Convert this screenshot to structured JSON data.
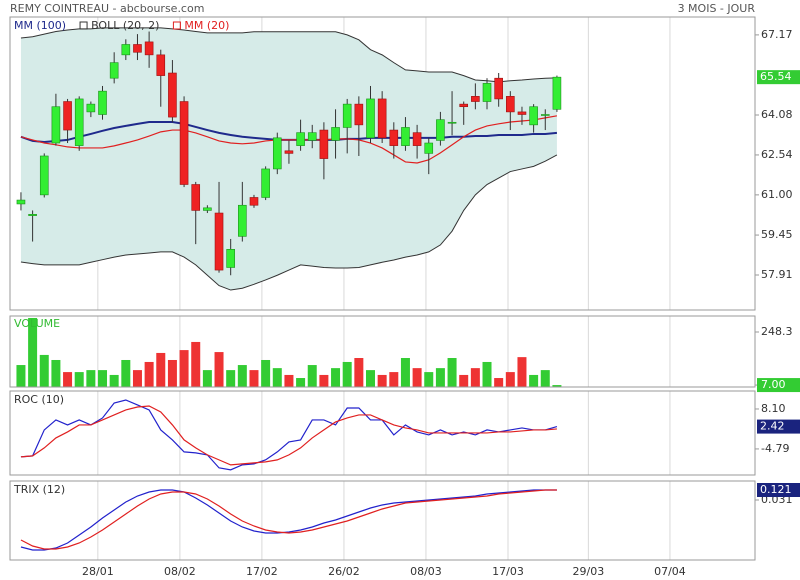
{
  "chart_data": [
    {
      "type": "candlestick",
      "title": "REMY COINTREAU - abcbourse.com",
      "subtitle": "3 MOIS - JOUR",
      "open": [
        60.65,
        60.2,
        61.0,
        63.0,
        64.6,
        62.9,
        64.2,
        64.1,
        65.5,
        66.4,
        66.8,
        66.9,
        66.4,
        65.7,
        64.6,
        61.4,
        60.4,
        60.3,
        58.2,
        59.4,
        60.9,
        60.9,
        62.0,
        62.7,
        62.9,
        63.1,
        63.5,
        63.1,
        63.6,
        64.5,
        63.2,
        64.7,
        63.5,
        62.9,
        63.4,
        62.6,
        63.1,
        63.8,
        64.5,
        64.8,
        64.6,
        65.5,
        64.8,
        64.2,
        63.7,
        64.1,
        64.3
      ],
      "high": [
        61.1,
        60.4,
        62.6,
        64.9,
        64.7,
        64.8,
        64.6,
        65.2,
        66.5,
        67.0,
        67.2,
        67.3,
        66.6,
        66.2,
        64.8,
        61.5,
        60.6,
        61.5,
        59.3,
        61.5,
        61.0,
        62.1,
        63.4,
        63.1,
        63.9,
        63.7,
        63.8,
        64.3,
        64.7,
        64.8,
        65.2,
        65.0,
        63.8,
        64.0,
        63.7,
        63.2,
        64.2,
        65.0,
        64.6,
        65.3,
        65.5,
        65.7,
        65.0,
        64.4,
        64.5,
        64.3,
        65.6
      ],
      "low": [
        60.4,
        59.2,
        60.9,
        62.9,
        63.0,
        62.7,
        64.0,
        63.9,
        65.3,
        66.2,
        66.2,
        65.9,
        64.4,
        63.8,
        61.3,
        59.1,
        60.3,
        58.0,
        57.9,
        59.2,
        60.5,
        60.8,
        61.8,
        62.2,
        62.7,
        62.8,
        61.6,
        62.4,
        62.6,
        62.5,
        63.0,
        63.0,
        62.4,
        62.7,
        62.4,
        61.8,
        62.9,
        63.3,
        63.7,
        64.3,
        64.3,
        64.4,
        63.5,
        63.7,
        63.4,
        63.5,
        64.2
      ],
      "close": [
        60.8,
        60.25,
        62.5,
        64.4,
        63.5,
        64.7,
        64.5,
        65.0,
        66.1,
        66.8,
        66.5,
        66.4,
        65.6,
        64.0,
        61.4,
        60.4,
        60.5,
        58.1,
        58.9,
        60.6,
        60.6,
        62.0,
        63.2,
        62.6,
        63.4,
        63.4,
        62.4,
        63.6,
        64.5,
        63.7,
        64.7,
        63.2,
        62.9,
        63.6,
        62.9,
        63.0,
        63.9,
        63.8,
        64.4,
        64.6,
        65.3,
        64.7,
        64.2,
        64.1,
        64.4,
        64.1,
        65.54
      ],
      "up_color": "#33ee33",
      "down_color": "#ee2222",
      "ylim": [
        56.56,
        67.86
      ],
      "yticks": [
        67.17,
        64.08,
        62.54,
        {
          "value": 61,
          "label": "61.00"
        },
        59.45,
        57.91
      ],
      "lines": [
        {
          "name": "MM (100)",
          "color": "#1f2a8c",
          "values": [
            63.24,
            63.08,
            63.04,
            63.08,
            63.12,
            63.24,
            63.35,
            63.47,
            63.58,
            63.66,
            63.74,
            63.81,
            63.81,
            63.81,
            63.74,
            63.62,
            63.5,
            63.39,
            63.31,
            63.24,
            63.2,
            63.16,
            63.12,
            63.12,
            63.12,
            63.12,
            63.12,
            63.12,
            63.16,
            63.16,
            63.2,
            63.2,
            63.2,
            63.2,
            63.2,
            63.2,
            63.2,
            63.24,
            63.24,
            63.27,
            63.27,
            63.31,
            63.31,
            63.31,
            63.35,
            63.35,
            63.39
          ]
        },
        {
          "name": "MM (20)",
          "color": "#e02020",
          "values": [
            63.24,
            63.12,
            63.0,
            62.93,
            62.85,
            62.81,
            62.81,
            62.81,
            62.89,
            63.0,
            63.12,
            63.27,
            63.43,
            63.5,
            63.5,
            63.39,
            63.24,
            63.08,
            63.0,
            62.97,
            63.0,
            63.08,
            63.12,
            63.12,
            63.12,
            63.12,
            63.12,
            63.16,
            63.16,
            63.12,
            63.0,
            62.81,
            62.54,
            62.27,
            62.23,
            62.35,
            62.62,
            62.93,
            63.24,
            63.5,
            63.66,
            63.74,
            63.81,
            63.85,
            63.89,
            63.97,
            64.05
          ]
        }
      ],
      "bollinger": {
        "name": "BOLL (20, 2)",
        "color": "#333333",
        "fill": "#d6ebe8",
        "upper": [
          67.05,
          67.1,
          67.2,
          67.3,
          67.36,
          67.4,
          67.4,
          67.44,
          67.44,
          67.44,
          67.44,
          67.44,
          67.44,
          67.4,
          67.36,
          67.3,
          67.25,
          67.25,
          67.25,
          67.25,
          67.29,
          67.29,
          67.29,
          67.29,
          67.29,
          67.29,
          67.29,
          67.29,
          67.17,
          66.98,
          66.6,
          66.4,
          66.1,
          65.82,
          65.78,
          65.74,
          65.74,
          65.74,
          65.6,
          65.43,
          65.4,
          65.36,
          65.4,
          65.43,
          65.47,
          65.5,
          65.51
        ],
        "lower": [
          58.41,
          58.35,
          58.3,
          58.3,
          58.3,
          58.3,
          58.4,
          58.5,
          58.6,
          58.68,
          58.72,
          58.76,
          58.8,
          58.8,
          58.6,
          58.3,
          57.9,
          57.5,
          57.33,
          57.4,
          57.55,
          57.72,
          57.9,
          58.1,
          58.3,
          58.25,
          58.2,
          58.18,
          58.18,
          58.2,
          58.3,
          58.4,
          58.49,
          58.6,
          58.68,
          58.8,
          59.07,
          59.6,
          60.4,
          61.0,
          61.4,
          61.65,
          61.9,
          62.0,
          62.1,
          62.3,
          62.54
        ]
      }
    },
    {
      "type": "bar",
      "title": "VOLUME",
      "title_color": "#33bb33",
      "values": [
        98,
        312,
        144,
        121,
        66,
        66,
        75,
        75,
        53,
        121,
        75,
        112,
        153,
        121,
        166,
        203,
        75,
        157,
        75,
        98,
        75,
        121,
        84,
        53,
        39,
        98,
        53,
        84,
        112,
        130,
        75,
        53,
        66,
        130,
        84,
        66,
        84,
        130,
        53,
        84,
        112,
        39,
        66,
        134,
        53,
        75,
        7
      ],
      "ylim": [
        -1.8,
        321
      ],
      "yticks": [
        248.3,
        {
          "value": 7,
          "label": "7.00"
        }
      ]
    },
    {
      "type": "line",
      "title": "ROC (10)",
      "series": [
        {
          "color": "#2222cc",
          "values": [
            -7.36,
            -7.03,
            1.34,
            4.56,
            2.95,
            4.56,
            2.95,
            5.2,
            10.03,
            11.0,
            9.39,
            7.78,
            1.34,
            -1.88,
            -5.75,
            -6.07,
            -6.71,
            -10.9,
            -11.54,
            -9.93,
            -9.61,
            -8.32,
            -5.75,
            -2.53,
            -1.88,
            4.56,
            4.56,
            2.95,
            8.42,
            8.42,
            4.56,
            4.56,
            -0.27,
            2.95,
            0.69,
            -0.27,
            1.34,
            -0.27,
            0.69,
            -0.27,
            1.34,
            0.69,
            1.34,
            1.98,
            1.34,
            1.34,
            2.42
          ]
        },
        {
          "color": "#e02020",
          "values": [
            -7.36,
            -7.03,
            -4.46,
            -1.24,
            0.69,
            2.95,
            2.95,
            4.56,
            6.17,
            7.78,
            8.74,
            9.07,
            7.13,
            2.95,
            -1.88,
            -4.46,
            -6.71,
            -8.32,
            -9.93,
            -9.61,
            -9.29,
            -8.97,
            -8.32,
            -6.71,
            -4.46,
            -1.24,
            1.34,
            3.91,
            5.2,
            6.17,
            6.17,
            4.56,
            2.95,
            1.98,
            1.34,
            0.37,
            0.37,
            0.37,
            0.37,
            0.37,
            0.37,
            0.69,
            0.69,
            1.02,
            1.34,
            1.34,
            1.66
          ]
        }
      ],
      "ylim": [
        -13.2,
        13.9
      ],
      "yticks": [
        {
          "value": 8.1,
          "label": "8.10"
        },
        -4.79
      ]
    },
    {
      "type": "line",
      "title": "TRIX (12)",
      "series": [
        {
          "color": "#2222cc",
          "values": [
            -0.392,
            -0.419,
            -0.419,
            -0.401,
            -0.356,
            -0.284,
            -0.212,
            -0.131,
            -0.059,
            0.013,
            0.067,
            0.103,
            0.121,
            0.121,
            0.103,
            0.049,
            -0.014,
            -0.086,
            -0.158,
            -0.212,
            -0.248,
            -0.266,
            -0.266,
            -0.257,
            -0.239,
            -0.212,
            -0.176,
            -0.149,
            -0.113,
            -0.077,
            -0.041,
            -0.014,
            0.004,
            0.013,
            0.022,
            0.031,
            0.04,
            0.049,
            0.058,
            0.067,
            0.085,
            0.094,
            0.103,
            0.112,
            0.121,
            0.121,
            0.121
          ]
        },
        {
          "color": "#e02020",
          "values": [
            -0.329,
            -0.383,
            -0.41,
            -0.41,
            -0.392,
            -0.356,
            -0.302,
            -0.239,
            -0.167,
            -0.095,
            -0.023,
            0.04,
            0.085,
            0.103,
            0.103,
            0.085,
            0.04,
            -0.023,
            -0.095,
            -0.158,
            -0.203,
            -0.239,
            -0.257,
            -0.266,
            -0.257,
            -0.239,
            -0.212,
            -0.185,
            -0.158,
            -0.122,
            -0.086,
            -0.05,
            -0.023,
            0.004,
            0.013,
            0.022,
            0.031,
            0.04,
            0.049,
            0.058,
            0.067,
            0.085,
            0.094,
            0.103,
            0.112,
            0.121,
            0.121
          ]
        }
      ],
      "ylim": [
        -0.509,
        0.202
      ],
      "yticks": [
        0.031
      ],
      "xlim": [
        -0.94,
        63.0
      ],
      "xticks": [
        {
          "value": 6.6,
          "label": "28/01"
        },
        {
          "value": 13.64,
          "label": "08/02"
        },
        {
          "value": 20.68,
          "label": "17/02"
        },
        {
          "value": 27.72,
          "label": "26/02"
        },
        {
          "value": 34.76,
          "label": "08/03"
        },
        {
          "value": 41.8,
          "label": "17/03"
        },
        {
          "value": 48.7,
          "label": "29/03"
        },
        {
          "value": 55.7,
          "label": "07/04"
        }
      ]
    }
  ]
}
